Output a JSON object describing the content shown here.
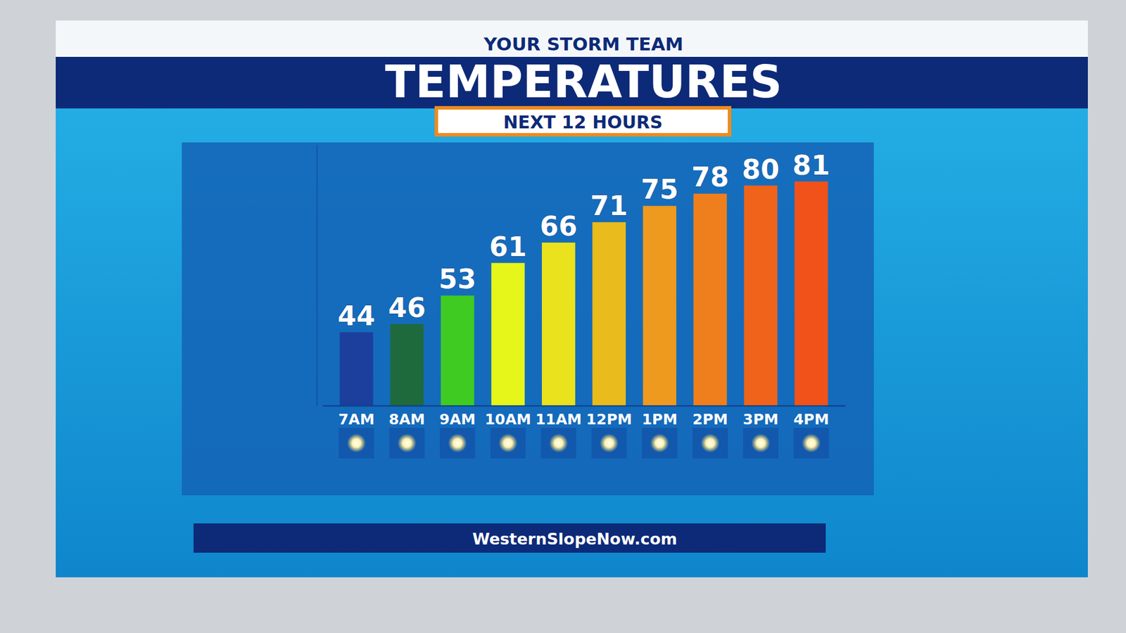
{
  "chart_data": {
    "type": "bar",
    "title": "TEMPERATURES",
    "subtitle": "NEXT 12 HOURS",
    "annotations": [
      "YOUR STORM TEAM",
      "WesternSlopeNow.com"
    ],
    "categories": [
      "7AM",
      "8AM",
      "9AM",
      "10AM",
      "11AM",
      "12PM",
      "1PM",
      "2PM",
      "3PM",
      "4PM"
    ],
    "values": [
      44,
      46,
      53,
      61,
      66,
      71,
      75,
      78,
      80,
      81
    ],
    "colors": [
      "#1c3f9e",
      "#1e6a3c",
      "#3fcb22",
      "#e6f51a",
      "#e9e21c",
      "#e9bb1c",
      "#ee9a1e",
      "#ef7f1c",
      "#f0631b",
      "#f1521a"
    ],
    "ylim": [
      26,
      90
    ],
    "yticks": [],
    "tick_labels": "x",
    "data_labels": true,
    "grid": false
  }
}
